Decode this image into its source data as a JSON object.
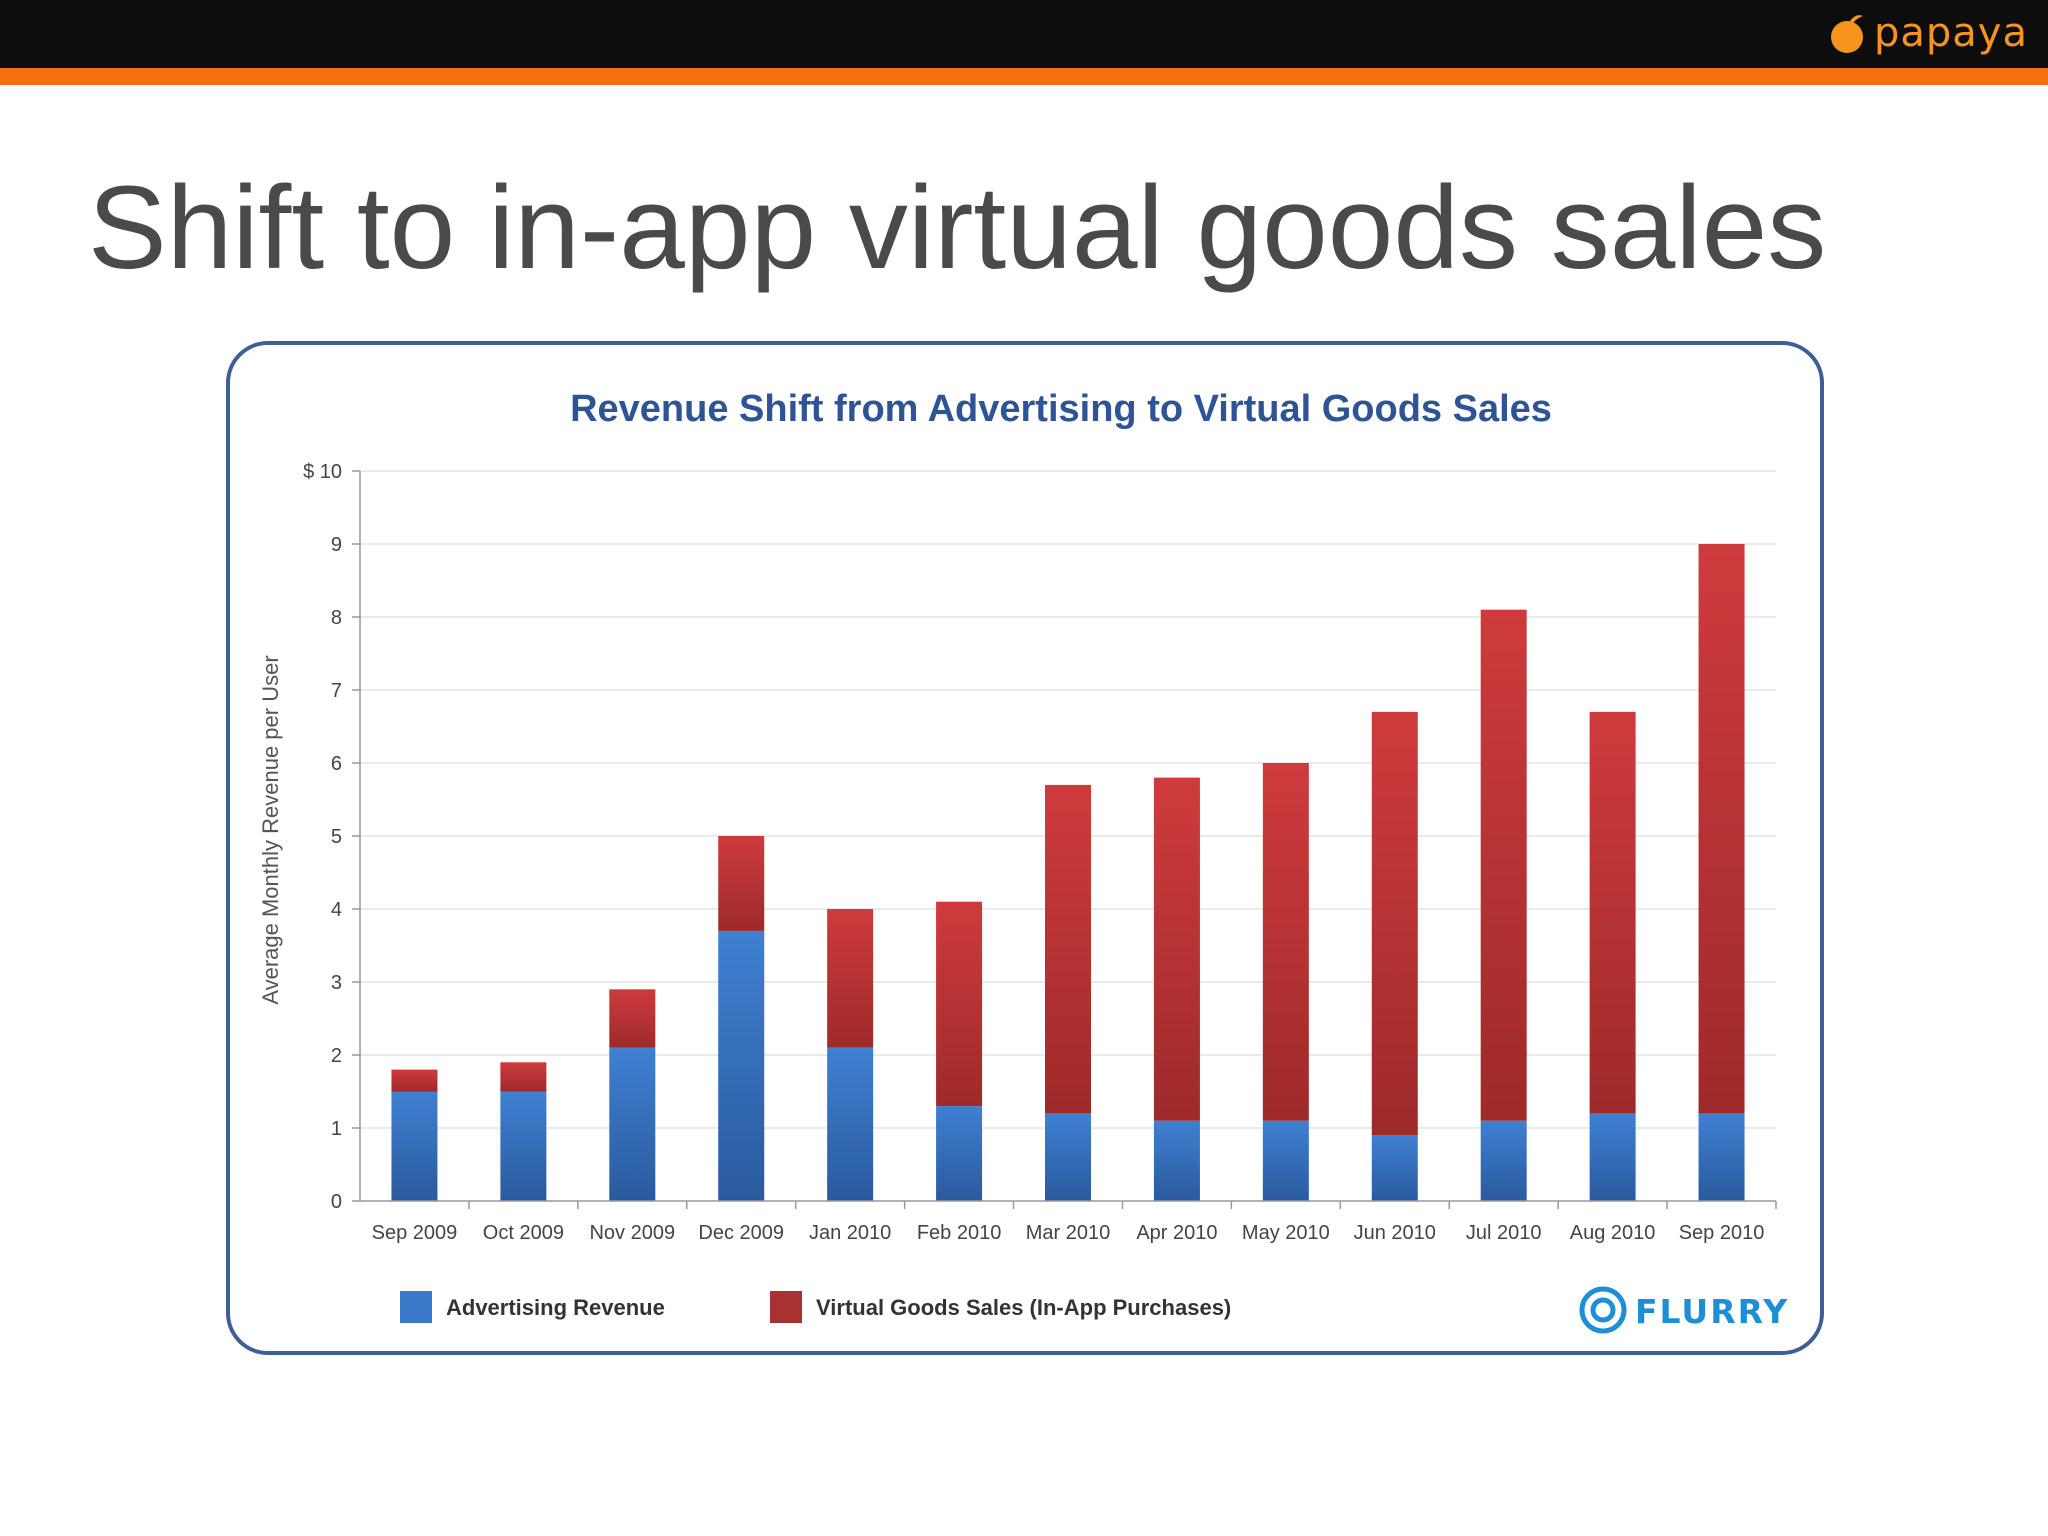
{
  "slide": {
    "title": "Shift to in-app virtual goods sales",
    "logo_text": "papaya"
  },
  "colors": {
    "top_bar": "#0d0d0d",
    "accent_bar": "#f7700e",
    "title_text": "#4a4a4a",
    "chart_title": "#2f5496",
    "advertising": "#3a78c9",
    "virtual_goods": "#c8373a",
    "frame_border": "#3d5f95"
  },
  "chart_data": {
    "type": "bar",
    "stacked": true,
    "title": "Revenue Shift from Advertising to Virtual Goods Sales",
    "xlabel": "",
    "ylabel": "Average Monthly Revenue per User",
    "ylim": [
      0,
      10
    ],
    "yticks": [
      "0",
      "1",
      "2",
      "3",
      "4",
      "5",
      "6",
      "7",
      "8",
      "9",
      "$ 10"
    ],
    "categories": [
      "Sep 2009",
      "Oct 2009",
      "Nov 2009",
      "Dec 2009",
      "Jan 2010",
      "Feb 2010",
      "Mar 2010",
      "Apr 2010",
      "May 2010",
      "Jun 2010",
      "Jul 2010",
      "Aug 2010",
      "Sep 2010"
    ],
    "series": [
      {
        "name": "Advertising Revenue",
        "values": [
          1.5,
          1.5,
          2.1,
          3.7,
          2.1,
          1.3,
          1.2,
          1.1,
          1.1,
          0.9,
          1.1,
          1.2,
          1.2
        ]
      },
      {
        "name": "Virtual Goods Sales (In-App Purchases)",
        "values": [
          0.3,
          0.4,
          0.8,
          1.3,
          1.9,
          2.8,
          4.5,
          4.7,
          4.9,
          5.8,
          7.0,
          5.5,
          7.8
        ]
      }
    ],
    "grid": true,
    "legend": "bottom-left",
    "source_logo": "FLURRY"
  }
}
